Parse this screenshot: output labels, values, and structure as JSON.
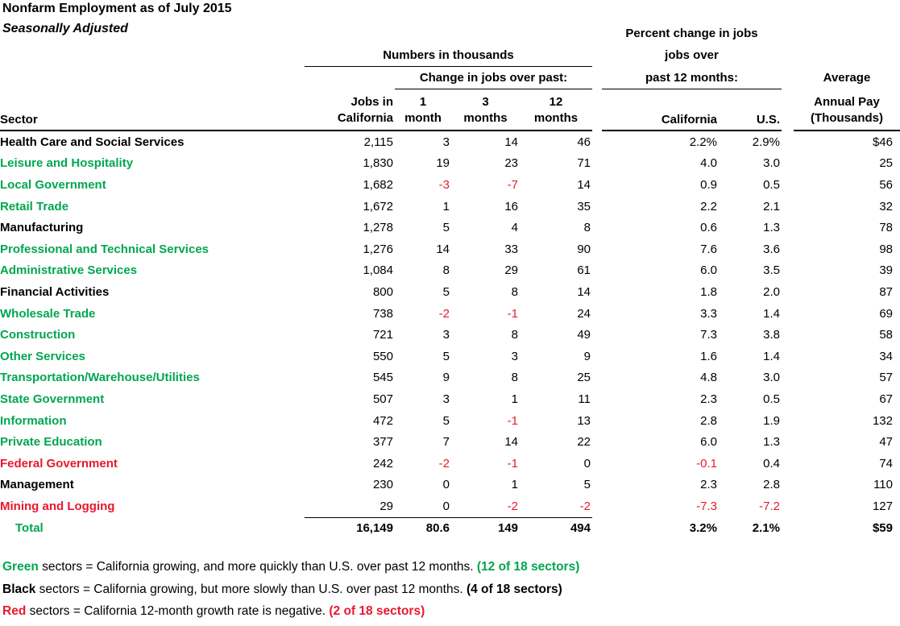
{
  "title": "Nonfarm Employment as of July 2015",
  "subtitle": "Seasonally Adjusted",
  "colors": {
    "green": "#00A651",
    "red": "#E8192C"
  },
  "header": {
    "numbers_group": "Numbers in thousands",
    "change_group": "Change in jobs over past:",
    "percent_line1": "Percent change in jobs",
    "percent_line2": "jobs over",
    "percent_line3": "past 12 months:",
    "sector": "Sector",
    "jobs_line1": "Jobs in",
    "jobs_line2": "California",
    "m1_line1": "1",
    "m1_line2": "month",
    "m3_line1": "3",
    "m3_line2": "months",
    "m12_line1": "12",
    "m12_line2": "months",
    "ca": "California",
    "us": "U.S.",
    "pay_line1": "Average",
    "pay_line2": "Annual Pay",
    "pay_line3": "(Thousands)"
  },
  "table": {
    "rows": [
      {
        "sector": "Health Care and Social Services",
        "color": "black",
        "jobs": "2,115",
        "m1": "3",
        "m3": "14",
        "m12": "46",
        "ca": "2.2%",
        "us": "2.9%",
        "pay": "$46"
      },
      {
        "sector": "Leisure and Hospitality",
        "color": "green",
        "jobs": "1,830",
        "m1": "19",
        "m3": "23",
        "m12": "71",
        "ca": "4.0",
        "us": "3.0",
        "pay": "25"
      },
      {
        "sector": "Local Government",
        "color": "green",
        "jobs": "1,682",
        "m1": "-3",
        "m3": "-7",
        "m12": "14",
        "ca": "0.9",
        "us": "0.5",
        "pay": "56"
      },
      {
        "sector": "Retail Trade",
        "color": "green",
        "jobs": "1,672",
        "m1": "1",
        "m3": "16",
        "m12": "35",
        "ca": "2.2",
        "us": "2.1",
        "pay": "32"
      },
      {
        "sector": "Manufacturing",
        "color": "black",
        "jobs": "1,278",
        "m1": "5",
        "m3": "4",
        "m12": "8",
        "ca": "0.6",
        "us": "1.3",
        "pay": "78"
      },
      {
        "sector": "Professional and Technical Services",
        "color": "green",
        "jobs": "1,276",
        "m1": "14",
        "m3": "33",
        "m12": "90",
        "ca": "7.6",
        "us": "3.6",
        "pay": "98"
      },
      {
        "sector": "Administrative Services",
        "color": "green",
        "jobs": "1,084",
        "m1": "8",
        "m3": "29",
        "m12": "61",
        "ca": "6.0",
        "us": "3.5",
        "pay": "39"
      },
      {
        "sector": "Financial Activities",
        "color": "black",
        "jobs": "800",
        "m1": "5",
        "m3": "8",
        "m12": "14",
        "ca": "1.8",
        "us": "2.0",
        "pay": "87"
      },
      {
        "sector": "Wholesale Trade",
        "color": "green",
        "jobs": "738",
        "m1": "-2",
        "m3": "-1",
        "m12": "24",
        "ca": "3.3",
        "us": "1.4",
        "pay": "69"
      },
      {
        "sector": "Construction",
        "color": "green",
        "jobs": "721",
        "m1": "3",
        "m3": "8",
        "m12": "49",
        "ca": "7.3",
        "us": "3.8",
        "pay": "58"
      },
      {
        "sector": "Other Services",
        "color": "green",
        "jobs": "550",
        "m1": "5",
        "m3": "3",
        "m12": "9",
        "ca": "1.6",
        "us": "1.4",
        "pay": "34"
      },
      {
        "sector": "Transportation/Warehouse/Utilities",
        "color": "green",
        "jobs": "545",
        "m1": "9",
        "m3": "8",
        "m12": "25",
        "ca": "4.8",
        "us": "3.0",
        "pay": "57"
      },
      {
        "sector": "State Government",
        "color": "green",
        "jobs": "507",
        "m1": "3",
        "m3": "1",
        "m12": "11",
        "ca": "2.3",
        "us": "0.5",
        "pay": "67"
      },
      {
        "sector": "Information",
        "color": "green",
        "jobs": "472",
        "m1": "5",
        "m3": "-1",
        "m12": "13",
        "ca": "2.8",
        "us": "1.9",
        "pay": "132"
      },
      {
        "sector": "Private Education",
        "color": "green",
        "jobs": "377",
        "m1": "7",
        "m3": "14",
        "m12": "22",
        "ca": "6.0",
        "us": "1.3",
        "pay": "47"
      },
      {
        "sector": "Federal Government",
        "color": "red",
        "jobs": "242",
        "m1": "-2",
        "m3": "-1",
        "m12": "0",
        "ca": "-0.1",
        "us": "0.4",
        "pay": "74"
      },
      {
        "sector": "Management",
        "color": "black",
        "jobs": "230",
        "m1": "0",
        "m3": "1",
        "m12": "5",
        "ca": "2.3",
        "us": "2.8",
        "pay": "110"
      },
      {
        "sector": "Mining and Logging",
        "color": "red",
        "jobs": "29",
        "m1": "0",
        "m3": "-2",
        "m12": "-2",
        "ca": "-7.3",
        "us": "-7.2",
        "pay": "127"
      }
    ],
    "total": {
      "sector": "Total",
      "color": "green",
      "jobs": "16,149",
      "m1": "80.6",
      "m3": "149",
      "m12": "494",
      "ca": "3.2%",
      "us": "2.1%",
      "pay": "$59"
    }
  },
  "footnotes": [
    {
      "label": "Green",
      "text": " sectors = California growing, and more quickly than U.S. over past 12 months. ",
      "count": "(12 of 18 sectors)",
      "color": "green"
    },
    {
      "label": "Black",
      "text": " sectors = California growing, but more slowly than U.S. over past 12 months. ",
      "count": "(4 of 18 sectors)",
      "color": "black"
    },
    {
      "label": "Red",
      "text": " sectors = California 12-month growth rate is negative. ",
      "count": "(2 of 18 sectors)",
      "color": "red"
    }
  ]
}
